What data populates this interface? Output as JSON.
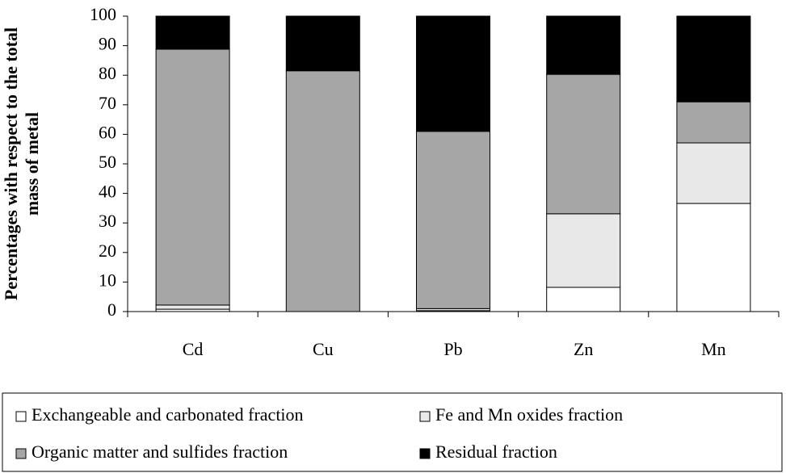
{
  "chart_data": {
    "type": "stacked_bar",
    "ylabel": [
      "Percentages with respect to the total",
      "mass of metal"
    ],
    "categories": [
      "Cd",
      "Cu",
      "Pb",
      "Zn",
      "Mn"
    ],
    "series": [
      {
        "name": "Exchangeable and carbonated fraction",
        "color": "#ffffff",
        "values": [
          0.8,
          0,
          0.3,
          8.2,
          36.6
        ]
      },
      {
        "name": "Fe and Mn oxides fraction",
        "color": "#e8e8e8",
        "values": [
          1.4,
          0,
          0.7,
          24.9,
          20.5
        ]
      },
      {
        "name": "Organic matter and sulfides fraction",
        "color": "#a6a6a6",
        "values": [
          86.6,
          81.5,
          60,
          47.2,
          13.9
        ]
      },
      {
        "name": "Residual fraction",
        "color": "#000000",
        "values": [
          11.2,
          18.5,
          39,
          19.7,
          29
        ]
      }
    ],
    "ylim": [
      0,
      100
    ],
    "yticks": [
      0,
      10,
      20,
      30,
      40,
      50,
      60,
      70,
      80,
      90,
      100
    ],
    "legend": "bottom"
  }
}
